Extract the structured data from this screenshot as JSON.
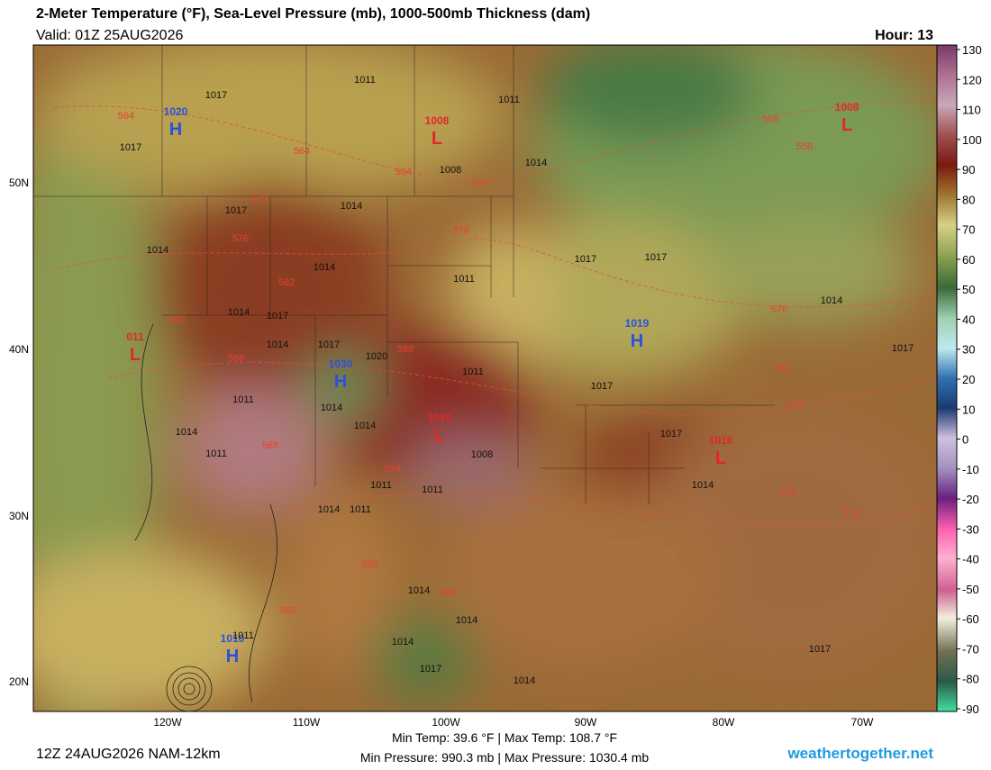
{
  "header": {
    "title": "2-Meter Temperature (°F), Sea-Level Pressure (mb), 1000-500mb Thickness (dam)",
    "valid": "Valid: 01Z 25AUG2026",
    "hour": "Hour: 13"
  },
  "map": {
    "lat_labels": [
      "50N",
      "40N",
      "30N",
      "20N"
    ],
    "lon_labels": [
      "120W",
      "110W",
      "100W",
      "90W",
      "80W",
      "70W"
    ],
    "centers": [
      {
        "letter": "H",
        "value": "1020"
      },
      {
        "letter": "L",
        "value": "1008"
      },
      {
        "letter": "L",
        "value": "1008"
      },
      {
        "letter": "L",
        "value": "011"
      },
      {
        "letter": "H",
        "value": "1019"
      },
      {
        "letter": "H",
        "value": "1030"
      },
      {
        "letter": "L",
        "value": "1010"
      },
      {
        "letter": "L",
        "value": "1016"
      },
      {
        "letter": "H",
        "value": "1010"
      }
    ],
    "isobar_labels": [
      "1017",
      "1011",
      "1011",
      "1017",
      "1008",
      "1014",
      "1017",
      "1014",
      "1014",
      "1014",
      "1011",
      "1017",
      "1017",
      "1014",
      "1017",
      "1014",
      "1017",
      "1014",
      "1017",
      "1020",
      "1011",
      "1017",
      "1014",
      "1011",
      "1014",
      "1014",
      "1011",
      "1008",
      "1017",
      "1014",
      "1011",
      "1011",
      "1014",
      "1011",
      "1014",
      "1014",
      "1011",
      "1014",
      "1017",
      "1014",
      "1017"
    ],
    "thickness_labels": [
      "564",
      "564",
      "564",
      "570",
      "558",
      "558",
      "570",
      "576",
      "576",
      "582",
      "582",
      "588",
      "588",
      "576",
      "582",
      "570",
      "588",
      "594",
      "576",
      "576",
      "588",
      "582",
      "582"
    ]
  },
  "colorbar": {
    "ticks": [
      130,
      120,
      110,
      100,
      90,
      80,
      70,
      60,
      50,
      40,
      30,
      20,
      10,
      0,
      -10,
      -20,
      -30,
      -40,
      -50,
      -60,
      -70,
      -80,
      -90
    ]
  },
  "footer": {
    "run": "12Z 24AUG2026 NAM-12km",
    "temps": "Min Temp:  39.6 °F | Max Temp: 108.7 °F",
    "pressures": "Min Pressure: 990.3 mb | Max Pressure: 1030.4 mb",
    "site": "weathertogether.net"
  }
}
